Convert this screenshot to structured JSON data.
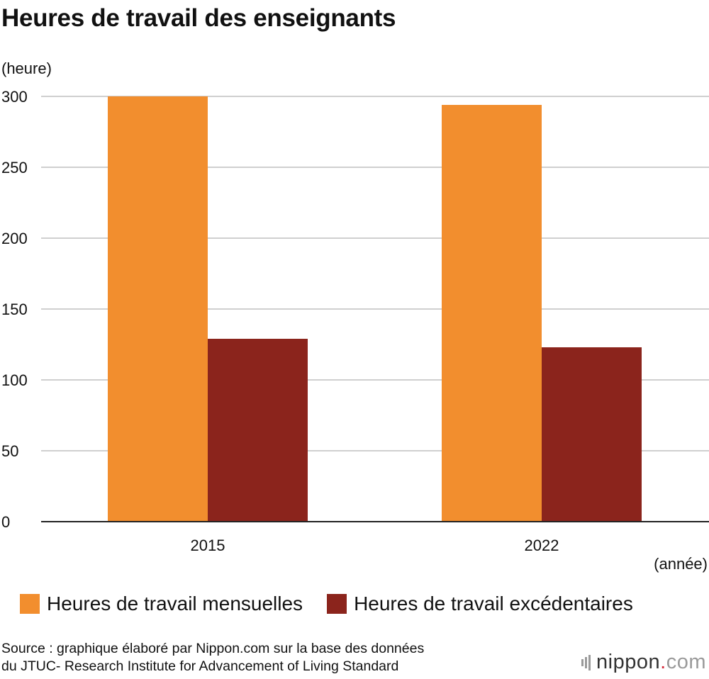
{
  "title": "Heures de travail des enseignants",
  "chart_data": {
    "type": "bar",
    "title": "Heures de travail des enseignants",
    "ylabel": "(heure)",
    "xlabel": "(année)",
    "categories": [
      "2015",
      "2022"
    ],
    "series": [
      {
        "name": "Heures de travail mensuelles",
        "values": [
          300,
          294
        ],
        "color": "#f28e2e"
      },
      {
        "name": "Heures de travail excédentaires",
        "values": [
          129,
          123
        ],
        "color": "#8b241c"
      }
    ],
    "ylim": [
      0,
      300
    ],
    "yticks": [
      "0",
      "50",
      "100",
      "150",
      "200",
      "250",
      "300"
    ],
    "grid": true,
    "legend": "bottom"
  },
  "source_line1": "Source : graphique élaboré par Nippon.com sur la base des données",
  "source_line2": "du JTUC- Research Institute for Advancement of Living Standard",
  "logo": {
    "name": "nippon",
    "dot": ".",
    "tld": "com"
  }
}
